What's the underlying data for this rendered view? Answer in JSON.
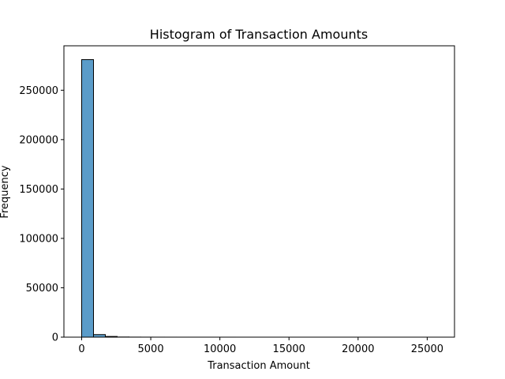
{
  "chart_data": {
    "type": "bar",
    "title": "Histogram of Transaction Amounts",
    "xlabel": "Transaction Amount",
    "ylabel": "Frequency",
    "xlim": [
      -1284,
      26975
    ],
    "ylim": [
      0,
      295000
    ],
    "xticks": [
      0,
      5000,
      10000,
      15000,
      20000,
      25000
    ],
    "yticks": [
      0,
      50000,
      100000,
      150000,
      200000,
      250000
    ],
    "bin_width": 856.4,
    "bin_edges_start": 0,
    "values": [
      281000,
      2600,
      700,
      150,
      60,
      30,
      15,
      10,
      6,
      4,
      3,
      2,
      2,
      1,
      1,
      1,
      1,
      1,
      1,
      1,
      1,
      1,
      1,
      1,
      1,
      1,
      1,
      1,
      1,
      1
    ],
    "grid": false,
    "bar_color": "#5b9cc9",
    "edge_color": "#000000"
  }
}
